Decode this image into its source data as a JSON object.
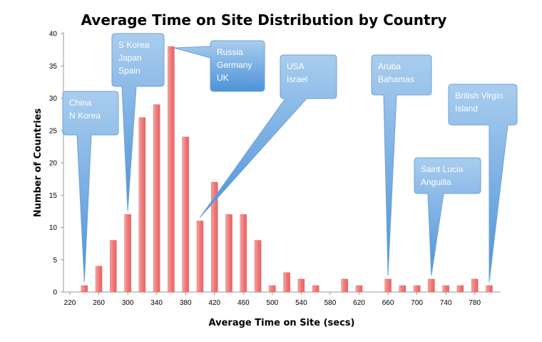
{
  "chart_data": {
    "type": "bar",
    "title": "Average Time on Site Distribution by Country",
    "xlabel": "Average Time on Site (secs)",
    "ylabel": "Number of Countries",
    "x_ticks": [
      220,
      260,
      300,
      340,
      380,
      420,
      460,
      500,
      540,
      580,
      620,
      660,
      700,
      740,
      780
    ],
    "y_ticks": [
      0,
      5,
      10,
      15,
      20,
      25,
      30,
      35,
      40
    ],
    "xlim": [
      210,
      800
    ],
    "ylim": [
      0,
      40
    ],
    "grid": false,
    "bar_color": "#f07878",
    "series": [
      {
        "name": "Number of Countries",
        "x": [
          240,
          260,
          280,
          300,
          320,
          340,
          360,
          380,
          400,
          420,
          440,
          460,
          480,
          500,
          520,
          540,
          560,
          600,
          620,
          660,
          680,
          700,
          720,
          740,
          760,
          780,
          800
        ],
        "values": [
          1,
          4,
          8,
          12,
          27,
          29,
          38,
          24,
          11,
          17,
          12,
          12,
          8,
          1,
          3,
          2,
          1,
          2,
          1,
          2,
          1,
          1,
          2,
          1,
          1,
          2,
          1
        ]
      }
    ],
    "annotations": [
      {
        "lines": [
          "China",
          "N Korea"
        ],
        "x": 240,
        "y": 1
      },
      {
        "lines": [
          "S Korea",
          "Japan",
          "Spain"
        ],
        "x": 300,
        "y": 12
      },
      {
        "lines": [
          "Russia",
          "Germany",
          "UK"
        ],
        "x": 360,
        "y": 38
      },
      {
        "lines": [
          "USA",
          "Israel"
        ],
        "x": 400,
        "y": 11
      },
      {
        "lines": [
          "Aruba",
          "Bahamas"
        ],
        "x": 660,
        "y": 2
      },
      {
        "lines": [
          "Saint Lucia",
          "Anguilla"
        ],
        "x": 720,
        "y": 2
      },
      {
        "lines": [
          "British Virgin",
          "Island"
        ],
        "x": 800,
        "y": 1
      }
    ]
  }
}
